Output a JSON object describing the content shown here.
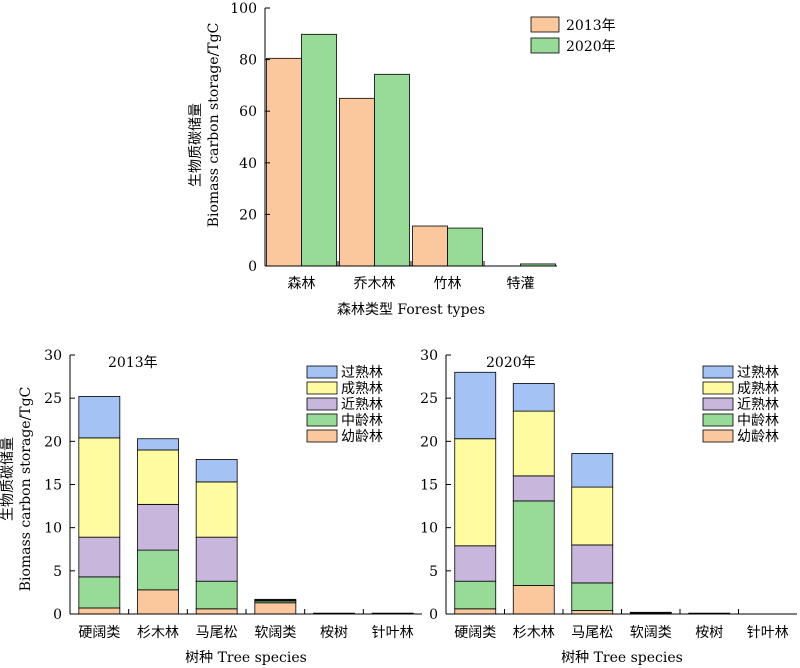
{
  "colors": {
    "c2013": "#FBC79C",
    "c2020": "#98DB98",
    "over_mature": "#A4C2F4",
    "mature": "#FFFBA0",
    "near_mature": "#C8B6DD",
    "middle_aged": "#98DB98",
    "young": "#FBC79C"
  },
  "chart_data": [
    {
      "type": "bar",
      "categories": [
        "森林",
        "乔木林",
        "竹林",
        "特灌"
      ],
      "series": [
        {
          "name": "2013年",
          "values": [
            80.5,
            65.0,
            15.5,
            0.0
          ]
        },
        {
          "name": "2020年",
          "values": [
            89.8,
            74.3,
            14.7,
            0.8
          ]
        }
      ],
      "xlabel": "森林类型 Forest types",
      "ylabel_cn": "生物质碳储量",
      "ylabel_en": "Biomass carbon storage/TgC",
      "ylim": [
        0,
        100
      ],
      "yticks": [
        "0",
        "20",
        "40",
        "60",
        "80",
        "100"
      ],
      "legend_position": "top-right"
    },
    {
      "type": "bar",
      "stacked": true,
      "panel_label": "2013年",
      "categories": [
        "硬阔类",
        "杉木林",
        "马尾松",
        "软阔类",
        "桉树",
        "针叶林"
      ],
      "series": [
        {
          "name": "幼龄林",
          "values": [
            0.7,
            2.8,
            0.6,
            1.3,
            0.0,
            0.0
          ]
        },
        {
          "name": "中龄林",
          "values": [
            3.6,
            4.6,
            3.2,
            0.2,
            0.1,
            0.0
          ]
        },
        {
          "name": "近熟林",
          "values": [
            4.6,
            5.3,
            5.1,
            0.1,
            0.0,
            0.0
          ]
        },
        {
          "name": "成熟林",
          "values": [
            11.5,
            6.3,
            6.4,
            0.1,
            0.0,
            0.0
          ]
        },
        {
          "name": "过熟林",
          "values": [
            4.8,
            1.3,
            2.6,
            0.0,
            0.0,
            0.1
          ]
        }
      ],
      "xlabel": "树种 Tree species",
      "ylabel_cn": "生物质碳储量",
      "ylabel_en": "Biomass carbon storage/TgC",
      "ylim": [
        0,
        30
      ],
      "yticks": [
        "0",
        "5",
        "10",
        "15",
        "20",
        "25",
        "30"
      ],
      "legend_order": [
        "过熟林",
        "成熟林",
        "近熟林",
        "中龄林",
        "幼龄林"
      ],
      "legend_position": "top-right"
    },
    {
      "type": "bar",
      "stacked": true,
      "panel_label": "2020年",
      "categories": [
        "硬阔类",
        "杉木林",
        "马尾松",
        "软阔类",
        "桉树",
        "针叶林"
      ],
      "series": [
        {
          "name": "幼龄林",
          "values": [
            0.6,
            3.3,
            0.4,
            0.1,
            0.0,
            0.0
          ]
        },
        {
          "name": "中龄林",
          "values": [
            3.2,
            9.8,
            3.2,
            0.1,
            0.1,
            0.0
          ]
        },
        {
          "name": "近熟林",
          "values": [
            4.1,
            2.9,
            4.4,
            0.0,
            0.0,
            0.0
          ]
        },
        {
          "name": "成熟林",
          "values": [
            12.4,
            7.5,
            6.7,
            0.0,
            0.0,
            0.0
          ]
        },
        {
          "name": "过熟林",
          "values": [
            7.7,
            3.2,
            3.9,
            0.0,
            0.0,
            0.0
          ]
        }
      ],
      "xlabel": "树种 Tree species",
      "ylim": [
        0,
        30
      ],
      "yticks": [
        "0",
        "5",
        "10",
        "15",
        "20",
        "25",
        "30"
      ],
      "legend_order": [
        "过熟林",
        "成熟林",
        "近熟林",
        "中龄林",
        "幼龄林"
      ],
      "legend_position": "top-right"
    }
  ]
}
